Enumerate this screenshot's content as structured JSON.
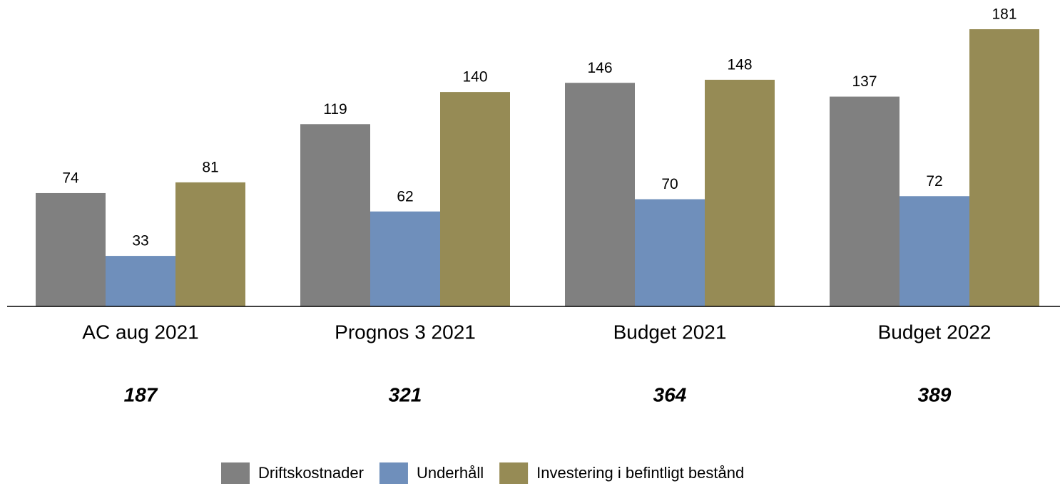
{
  "chart_data": {
    "type": "bar",
    "categories": [
      "AC aug 2021",
      "Prognos 3 2021",
      "Budget 2021",
      "Budget 2022"
    ],
    "series": [
      {
        "name": "Driftskostnader",
        "color": "#808080",
        "values": [
          74,
          119,
          146,
          137
        ]
      },
      {
        "name": "Underhåll",
        "color": "#6f8fbb",
        "values": [
          33,
          62,
          70,
          72
        ]
      },
      {
        "name": "Investering i befintligt bestånd",
        "color": "#968b55",
        "values": [
          81,
          140,
          148,
          181
        ]
      }
    ],
    "totals": [
      187,
      321,
      364,
      389
    ],
    "legend": "bottom"
  }
}
